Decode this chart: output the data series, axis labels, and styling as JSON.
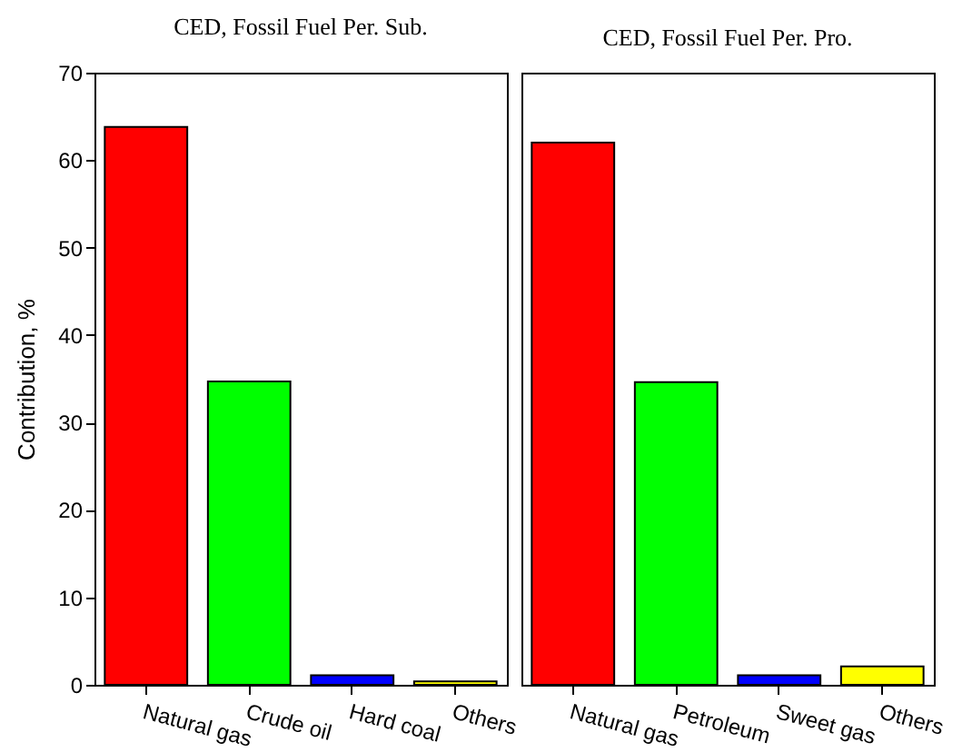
{
  "chart_data": [
    {
      "type": "bar",
      "title": "CED, Fossil Fuel Per. Sub.",
      "ylabel": "Contribution, %",
      "categories": [
        "Natural gas",
        "Crude oil",
        "Hard coal",
        "Others"
      ],
      "values": [
        63.8,
        34.7,
        1.1,
        0.4
      ],
      "colors": [
        "#ff0000",
        "#00ff00",
        "#0000ff",
        "#ffff00"
      ],
      "ylim": [
        0,
        70
      ],
      "yticks": [
        0,
        10,
        20,
        30,
        40,
        50,
        60,
        70
      ],
      "grid": false,
      "legend": false
    },
    {
      "type": "bar",
      "title": "CED, Fossil Fuel Per. Pro.",
      "categories": [
        "Natural gas",
        "Petroleum",
        "Sweet gas",
        "Others"
      ],
      "values": [
        62.0,
        34.6,
        1.1,
        2.1
      ],
      "colors": [
        "#ff0000",
        "#00ff00",
        "#0000ff",
        "#ffff00"
      ],
      "ylim": [
        0,
        70
      ],
      "yticks": [
        0,
        10,
        20,
        30,
        40,
        50,
        60,
        70
      ],
      "grid": false,
      "legend": false,
      "tick_labels": "x"
    }
  ]
}
